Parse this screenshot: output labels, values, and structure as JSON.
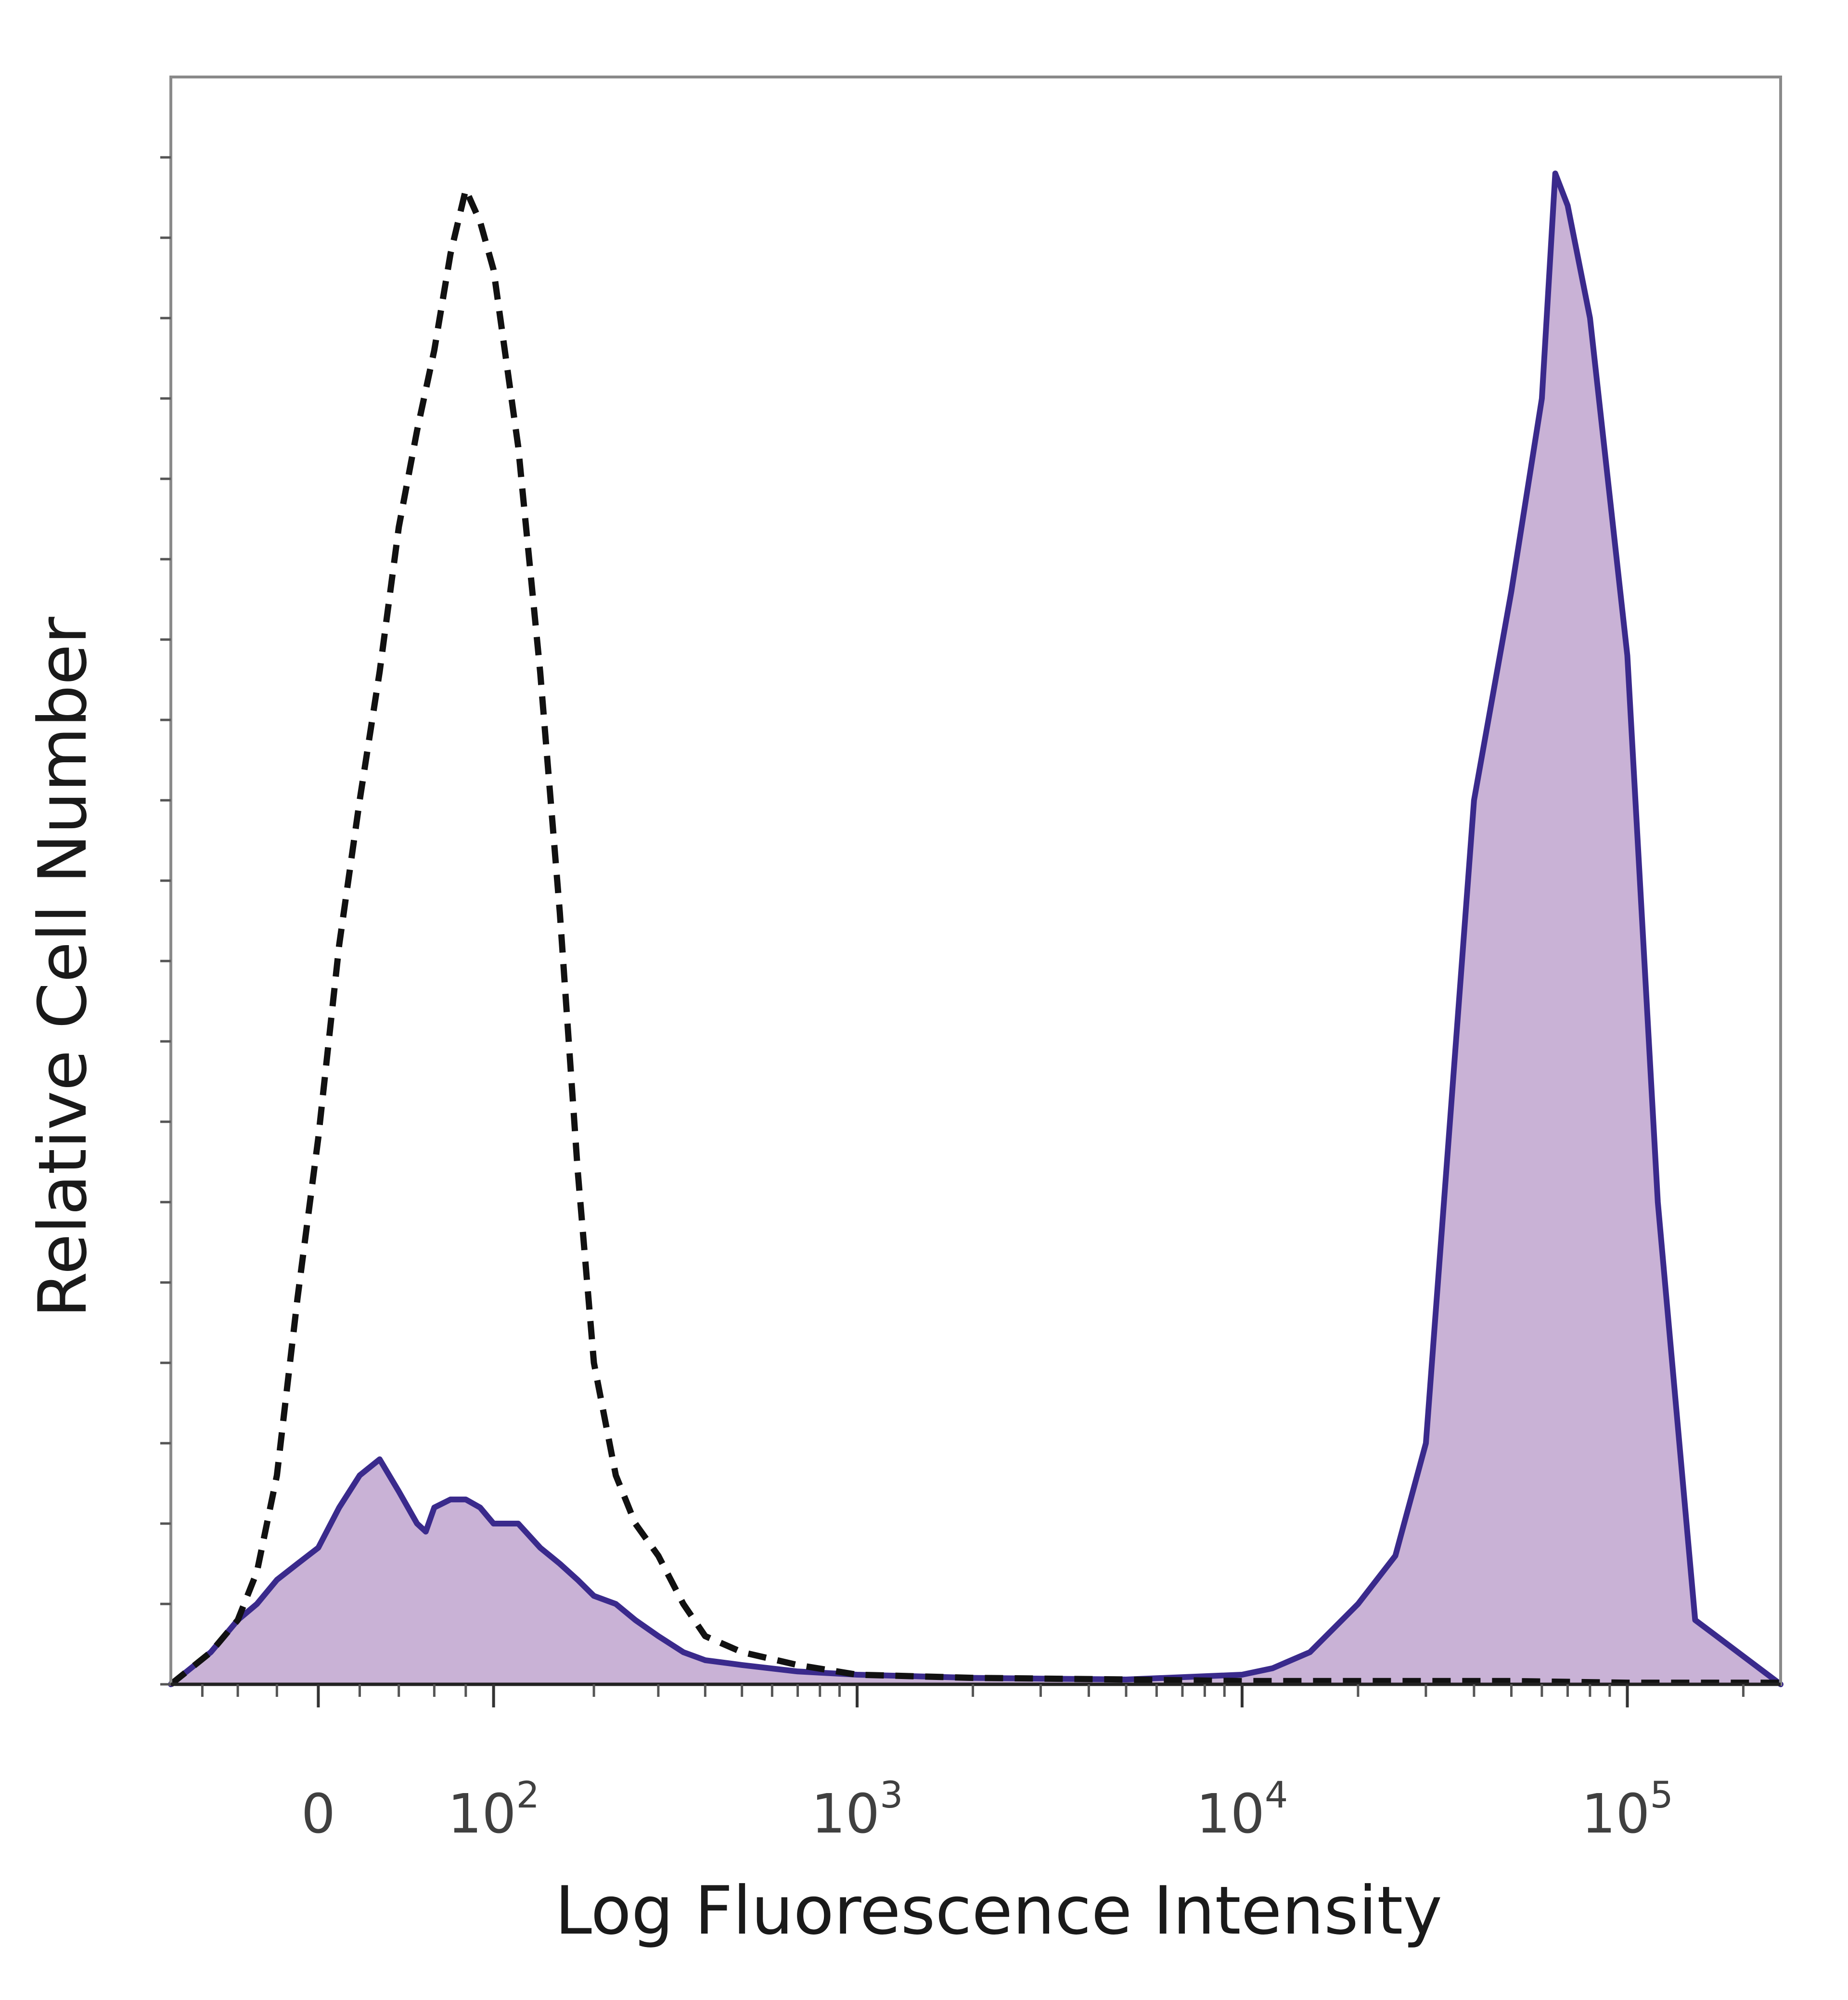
{
  "chart_data": {
    "type": "area",
    "xlabel": "Log Fluorescence Intensity",
    "ylabel": "Relative Cell Number",
    "x_scale": "biexponential",
    "xlim": [
      -80,
      250000
    ],
    "ylim": [
      0,
      100
    ],
    "x_ticks": [
      {
        "value": 0,
        "base": "0",
        "exp": ""
      },
      {
        "value": 100,
        "base": "10",
        "exp": "2"
      },
      {
        "value": 1000,
        "base": "10",
        "exp": "3"
      },
      {
        "value": 10000,
        "base": "10",
        "exp": "4"
      },
      {
        "value": 100000,
        "base": "10",
        "exp": "5"
      }
    ],
    "grid": false,
    "legend": "none",
    "series": [
      {
        "style": "dashed black outline",
        "color": "#111111",
        "fill": "none",
        "x": [
          -80,
          -55,
          -40,
          -30,
          -20,
          -10,
          0,
          10,
          20,
          30,
          40,
          50,
          60,
          70,
          80,
          90,
          100,
          120,
          140,
          160,
          180,
          200,
          230,
          260,
          300,
          350,
          400,
          500,
          700,
          1000,
          2000,
          5000,
          10000,
          20000,
          50000,
          100000,
          250000
        ],
        "y": [
          0,
          2,
          4,
          7,
          13,
          24,
          34,
          46,
          55,
          63,
          72,
          78,
          83,
          89,
          93,
          91,
          88,
          77,
          63,
          48,
          32,
          20,
          13,
          10,
          8,
          5,
          3,
          2,
          1.2,
          0.6,
          0.4,
          0.3,
          0.2,
          0.2,
          0.2,
          0.1,
          0.1
        ]
      },
      {
        "style": "solid purple outline with filled area",
        "color": "#3a2a8c",
        "fill": "#c9b2d6",
        "x": [
          -80,
          -55,
          -40,
          -30,
          -20,
          -10,
          0,
          10,
          20,
          30,
          40,
          50,
          55,
          60,
          70,
          80,
          90,
          100,
          120,
          140,
          160,
          180,
          200,
          230,
          260,
          300,
          350,
          400,
          500,
          700,
          1000,
          2000,
          5000,
          10000,
          12000,
          15000,
          20000,
          25000,
          30000,
          40000,
          50000,
          60000,
          65000,
          70000,
          80000,
          100000,
          120000,
          150000,
          250000
        ],
        "y": [
          0,
          2,
          4,
          5,
          6.5,
          7.5,
          8.5,
          11,
          13,
          14,
          12,
          10,
          9.5,
          11,
          11.5,
          11.5,
          11,
          10,
          10,
          8.5,
          7.5,
          6.5,
          5.5,
          5,
          4,
          3,
          2,
          1.5,
          1.2,
          0.8,
          0.6,
          0.4,
          0.3,
          0.6,
          1,
          2,
          5,
          8,
          15,
          55,
          68,
          80,
          94,
          92,
          85,
          64,
          30,
          4,
          0
        ]
      }
    ]
  }
}
